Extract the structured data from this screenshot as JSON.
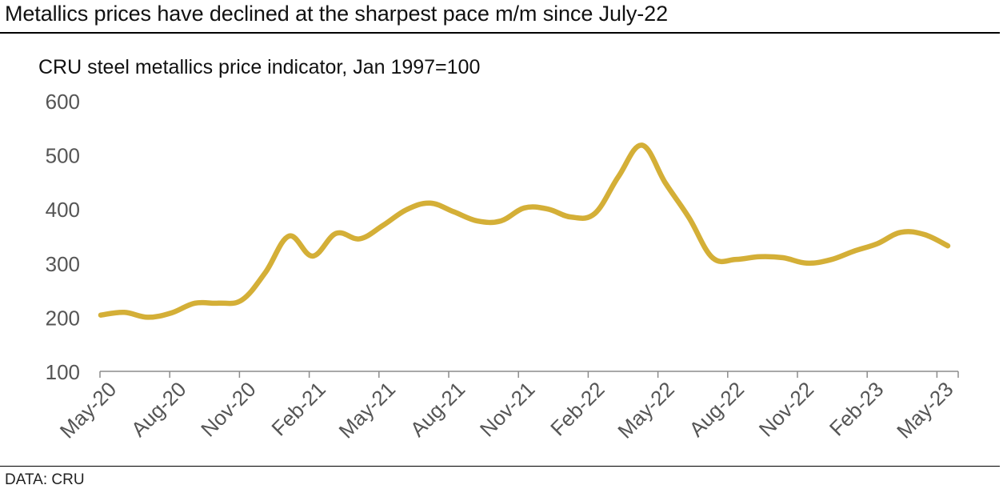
{
  "title": "Metallics prices have declined at the sharpest pace m/m since July-22",
  "source": "DATA: CRU",
  "chart_data": {
    "type": "line",
    "title": "Metallics prices have declined at the sharpest pace m/m since July-22",
    "subtitle": "CRU steel metallics price indicator, Jan 1997=100",
    "xlabel": "",
    "ylabel": "",
    "ylim": [
      100,
      600
    ],
    "yticks": [
      100,
      200,
      300,
      400,
      500,
      600
    ],
    "xtick_labels": [
      "May-20",
      "Aug-20",
      "Nov-20",
      "Feb-21",
      "May-21",
      "Aug-21",
      "Nov-21",
      "Feb-22",
      "May-22",
      "Aug-22",
      "Nov-22",
      "Feb-23",
      "May-23"
    ],
    "x": [
      "May-20",
      "Jun-20",
      "Jul-20",
      "Aug-20",
      "Sep-20",
      "Oct-20",
      "Nov-20",
      "Dec-20",
      "Jan-21",
      "Feb-21",
      "Mar-21",
      "Apr-21",
      "May-21",
      "Jun-21",
      "Jul-21",
      "Aug-21",
      "Sep-21",
      "Oct-21",
      "Nov-21",
      "Dec-21",
      "Jan-22",
      "Feb-22",
      "Mar-22",
      "Apr-22",
      "May-22",
      "Jun-22",
      "Jul-22",
      "Aug-22",
      "Sep-22",
      "Oct-22",
      "Nov-22",
      "Dec-22",
      "Jan-23",
      "Feb-23",
      "Mar-23",
      "Apr-23",
      "May-23"
    ],
    "series": [
      {
        "name": "CRU steel metallics price indicator",
        "color": "#D4AF37",
        "values": [
          204,
          209,
          200,
          208,
          226,
          226,
          232,
          283,
          350,
          313,
          355,
          345,
          370,
          399,
          411,
          395,
          378,
          378,
          402,
          400,
          385,
          392,
          460,
          518,
          448,
          384,
          310,
          307,
          312,
          310,
          300,
          306,
          322,
          336,
          357,
          353,
          332
        ]
      }
    ]
  }
}
